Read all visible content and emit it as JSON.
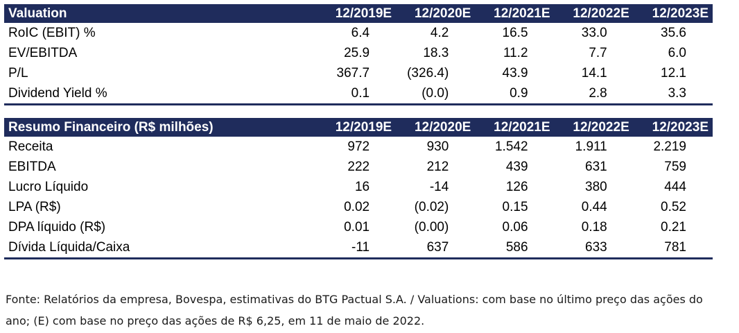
{
  "valuation": {
    "title": "Valuation",
    "years": [
      "12/2019E",
      "12/2020E",
      "12/2021E",
      "12/2022E",
      "12/2023E"
    ],
    "rows": [
      {
        "label": "RoIC (EBIT) %",
        "values": [
          "6.4",
          "4.2",
          "16.5",
          "33.0",
          "35.6"
        ]
      },
      {
        "label": "EV/EBITDA",
        "values": [
          "25.9",
          "18.3",
          "11.2",
          "7.7",
          "6.0"
        ]
      },
      {
        "label": "P/L",
        "values": [
          "367.7",
          "(326.4)",
          "43.9",
          "14.1",
          "12.1"
        ]
      },
      {
        "label": "Dividend Yield %",
        "values": [
          "0.1",
          "(0.0)",
          "0.9",
          "2.8",
          "3.3"
        ]
      }
    ]
  },
  "resumo": {
    "title": "Resumo Financeiro (R$ milhões)",
    "years": [
      "12/2019E",
      "12/2020E",
      "12/2021E",
      "12/2022E",
      "12/2023E"
    ],
    "rows": [
      {
        "label": "Receita",
        "values": [
          "972",
          "930",
          "1.542",
          "1.911",
          "2.219"
        ]
      },
      {
        "label": "EBITDA",
        "values": [
          "222",
          "212",
          "439",
          "631",
          "759"
        ]
      },
      {
        "label": "Lucro Líquido",
        "values": [
          "16",
          "-14",
          "126",
          "380",
          "444"
        ]
      },
      {
        "label": "LPA (R$)",
        "values": [
          "0.02",
          "(0.02)",
          "0.15",
          "0.44",
          "0.52"
        ]
      },
      {
        "label": "DPA líquido (R$)",
        "values": [
          "0.01",
          "(0.00)",
          "0.06",
          "0.18",
          "0.21"
        ]
      },
      {
        "label": "Dívida Líquida/Caixa",
        "values": [
          "-11",
          "637",
          "586",
          "633",
          "781"
        ]
      }
    ]
  },
  "footnote": {
    "line1": "Fonte: Relatórios da empresa, Bovespa, estimativas do BTG Pactual S.A. / Valuations: com base no último preço das ações do",
    "line2": "ano; (E) com base no preço das ações de R$ 6,25, em 11 de maio de 2022."
  },
  "colors": {
    "header_bg": "#1f2c5c",
    "header_text": "#ffffff"
  }
}
